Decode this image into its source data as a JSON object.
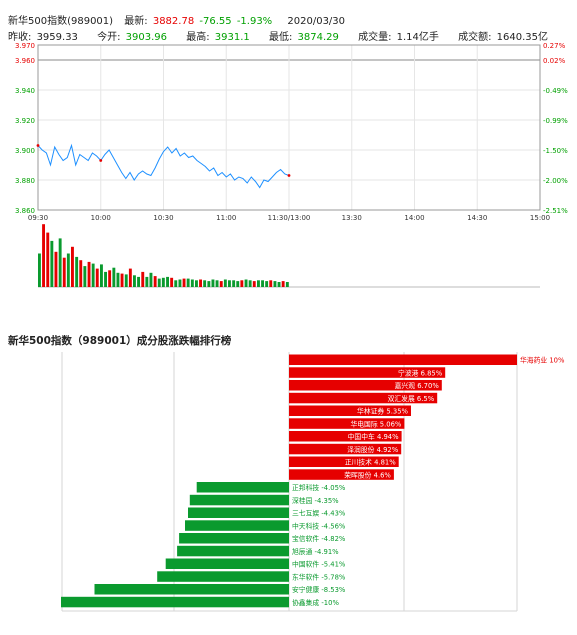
{
  "header": {
    "row1": {
      "name": "新华500指数(989001)",
      "latest_label": "最新:",
      "latest_value": "3882.78",
      "change": "-76.55",
      "change_pct": "-1.93%",
      "date": "2020/03/30"
    },
    "row2": {
      "prev_close_label": "昨收:",
      "prev_close": "3959.33",
      "open_label": "今开:",
      "open": "3903.96",
      "high_label": "最高:",
      "high": "3931.1",
      "low_label": "最低:",
      "low": "3874.29",
      "volume_label": "成交量:",
      "volume": "1.14亿手",
      "turnover_label": "成交额:",
      "turnover": "1640.35亿"
    }
  },
  "colors": {
    "up": "#e60000",
    "down": "#00a000",
    "price_line": "#1e90ff",
    "bar_up": "#e60000",
    "bar_down": "#0a9a2e"
  },
  "chart_data": [
    {
      "type": "line",
      "y_left_ticks": [
        "3.970",
        "3.960",
        "3.940",
        "3.920",
        "3.900",
        "3.880",
        "3.860"
      ],
      "y_right_ticks": [
        "0.27%",
        "0.02%",
        "-0.49%",
        "-0.99%",
        "-1.50%",
        "-2.00%",
        "-2.51%"
      ],
      "x_ticks": [
        "09:30",
        "10:00",
        "10:30",
        "11:00",
        "11:30/13:00",
        "13:30",
        "14:00",
        "14:30",
        "15:00"
      ],
      "ylim": [
        3.86,
        3.97
      ],
      "prev_close": 3.959,
      "series": [
        {
          "x": [
            0,
            2,
            4,
            6,
            8,
            10,
            12,
            14,
            16,
            18,
            20,
            22,
            24,
            26,
            28,
            30,
            32,
            34,
            36,
            38,
            40,
            42,
            44,
            46,
            48,
            50,
            52,
            54,
            56,
            58,
            60,
            62,
            64,
            66,
            68,
            70,
            72,
            74,
            76,
            78,
            80,
            82,
            84,
            86,
            88,
            90,
            92,
            94,
            96,
            98,
            100,
            102,
            104,
            106,
            108,
            110,
            112,
            114,
            116,
            118,
            120
          ],
          "y": [
            3.903,
            3.9,
            3.898,
            3.89,
            3.902,
            3.897,
            3.893,
            3.895,
            3.903,
            3.89,
            3.897,
            3.895,
            3.893,
            3.898,
            3.896,
            3.893,
            3.897,
            3.9,
            3.895,
            3.89,
            3.885,
            3.881,
            3.885,
            3.88,
            3.884,
            3.886,
            3.884,
            3.883,
            3.888,
            3.894,
            3.899,
            3.902,
            3.898,
            3.901,
            3.896,
            3.898,
            3.895,
            3.896,
            3.893,
            3.891,
            3.889,
            3.886,
            3.888,
            3.883,
            3.885,
            3.882,
            3.884,
            3.88,
            3.882,
            3.881,
            3.878,
            3.882,
            3.879,
            3.875,
            3.88,
            3.879,
            3.882,
            3.885,
            3.887,
            3.884,
            3.883
          ]
        }
      ],
      "markers_x": [
        0,
        30,
        59,
        89,
        120
      ]
    },
    {
      "type": "bar",
      "series": [
        {
          "values": [
            40,
            75,
            65,
            55,
            42,
            58,
            35,
            40,
            48,
            36,
            32,
            25,
            30,
            28,
            22,
            27,
            18,
            20,
            23,
            17,
            16,
            15,
            22,
            14,
            12,
            18,
            12,
            17,
            13,
            10,
            11,
            12,
            11,
            8,
            9,
            10,
            10,
            9,
            8,
            9,
            8,
            7,
            9,
            8,
            7,
            9,
            8,
            8,
            7,
            8,
            9,
            8,
            7,
            8,
            8,
            7,
            8,
            7,
            6,
            7,
            6
          ],
          "up": [
            0,
            1,
            1,
            0,
            1,
            0,
            1,
            0,
            1,
            0,
            1,
            0,
            1,
            0,
            1,
            0,
            0,
            1,
            0,
            0,
            1,
            0,
            1,
            0,
            0,
            1,
            0,
            0,
            1,
            0,
            0,
            0,
            1,
            0,
            0,
            1,
            0,
            0,
            0,
            1,
            0,
            0,
            0,
            0,
            1,
            0,
            0,
            0,
            0,
            1,
            0,
            0,
            1,
            0,
            0,
            0,
            1,
            0,
            0,
            1,
            0
          ]
        }
      ]
    },
    {
      "type": "bar",
      "title": "新华500指数（989001）成分股涨跌幅排行榜",
      "categories": [
        "华海药业",
        "宁波港",
        "嘉兴观",
        "双汇发展",
        "华林证券",
        "华电国际",
        "中国中车",
        "泽润股份",
        "正川技术",
        "荣晖股份",
        "正邦科技",
        "深桂园",
        "三七互娱",
        "中天科技",
        "宝信软件",
        "旭辰通",
        "中国软件",
        "东华软件",
        "安宁健康",
        "协鑫集成"
      ],
      "values": [
        10,
        6.85,
        6.7,
        6.5,
        5.35,
        5.06,
        4.94,
        4.92,
        4.81,
        4.6,
        -4.05,
        -4.35,
        -4.43,
        -4.56,
        -4.82,
        -4.91,
        -5.41,
        -5.78,
        -8.53,
        -10
      ],
      "labels": [
        "华海药业 10%",
        "宁波港 6.85%",
        "嘉兴观 6.70%",
        "双汇发展 6.5%",
        "华林证券 5.35%",
        "华电国际 5.06%",
        "中国中车 4.94%",
        "泽润股份 4.92%",
        "正川技术 4.81%",
        "荣晖股份 4.6%",
        "正邦科技 -4.05%",
        "深桂园 -4.35%",
        "三七互娱 -4.43%",
        "中天科技 -4.56%",
        "宝信软件 -4.82%",
        "旭辰通 -4.91%",
        "中国软件 -5.41%",
        "东华软件 -5.78%",
        "安宁健康 -8.53%",
        "协鑫集成 -10%"
      ]
    }
  ]
}
